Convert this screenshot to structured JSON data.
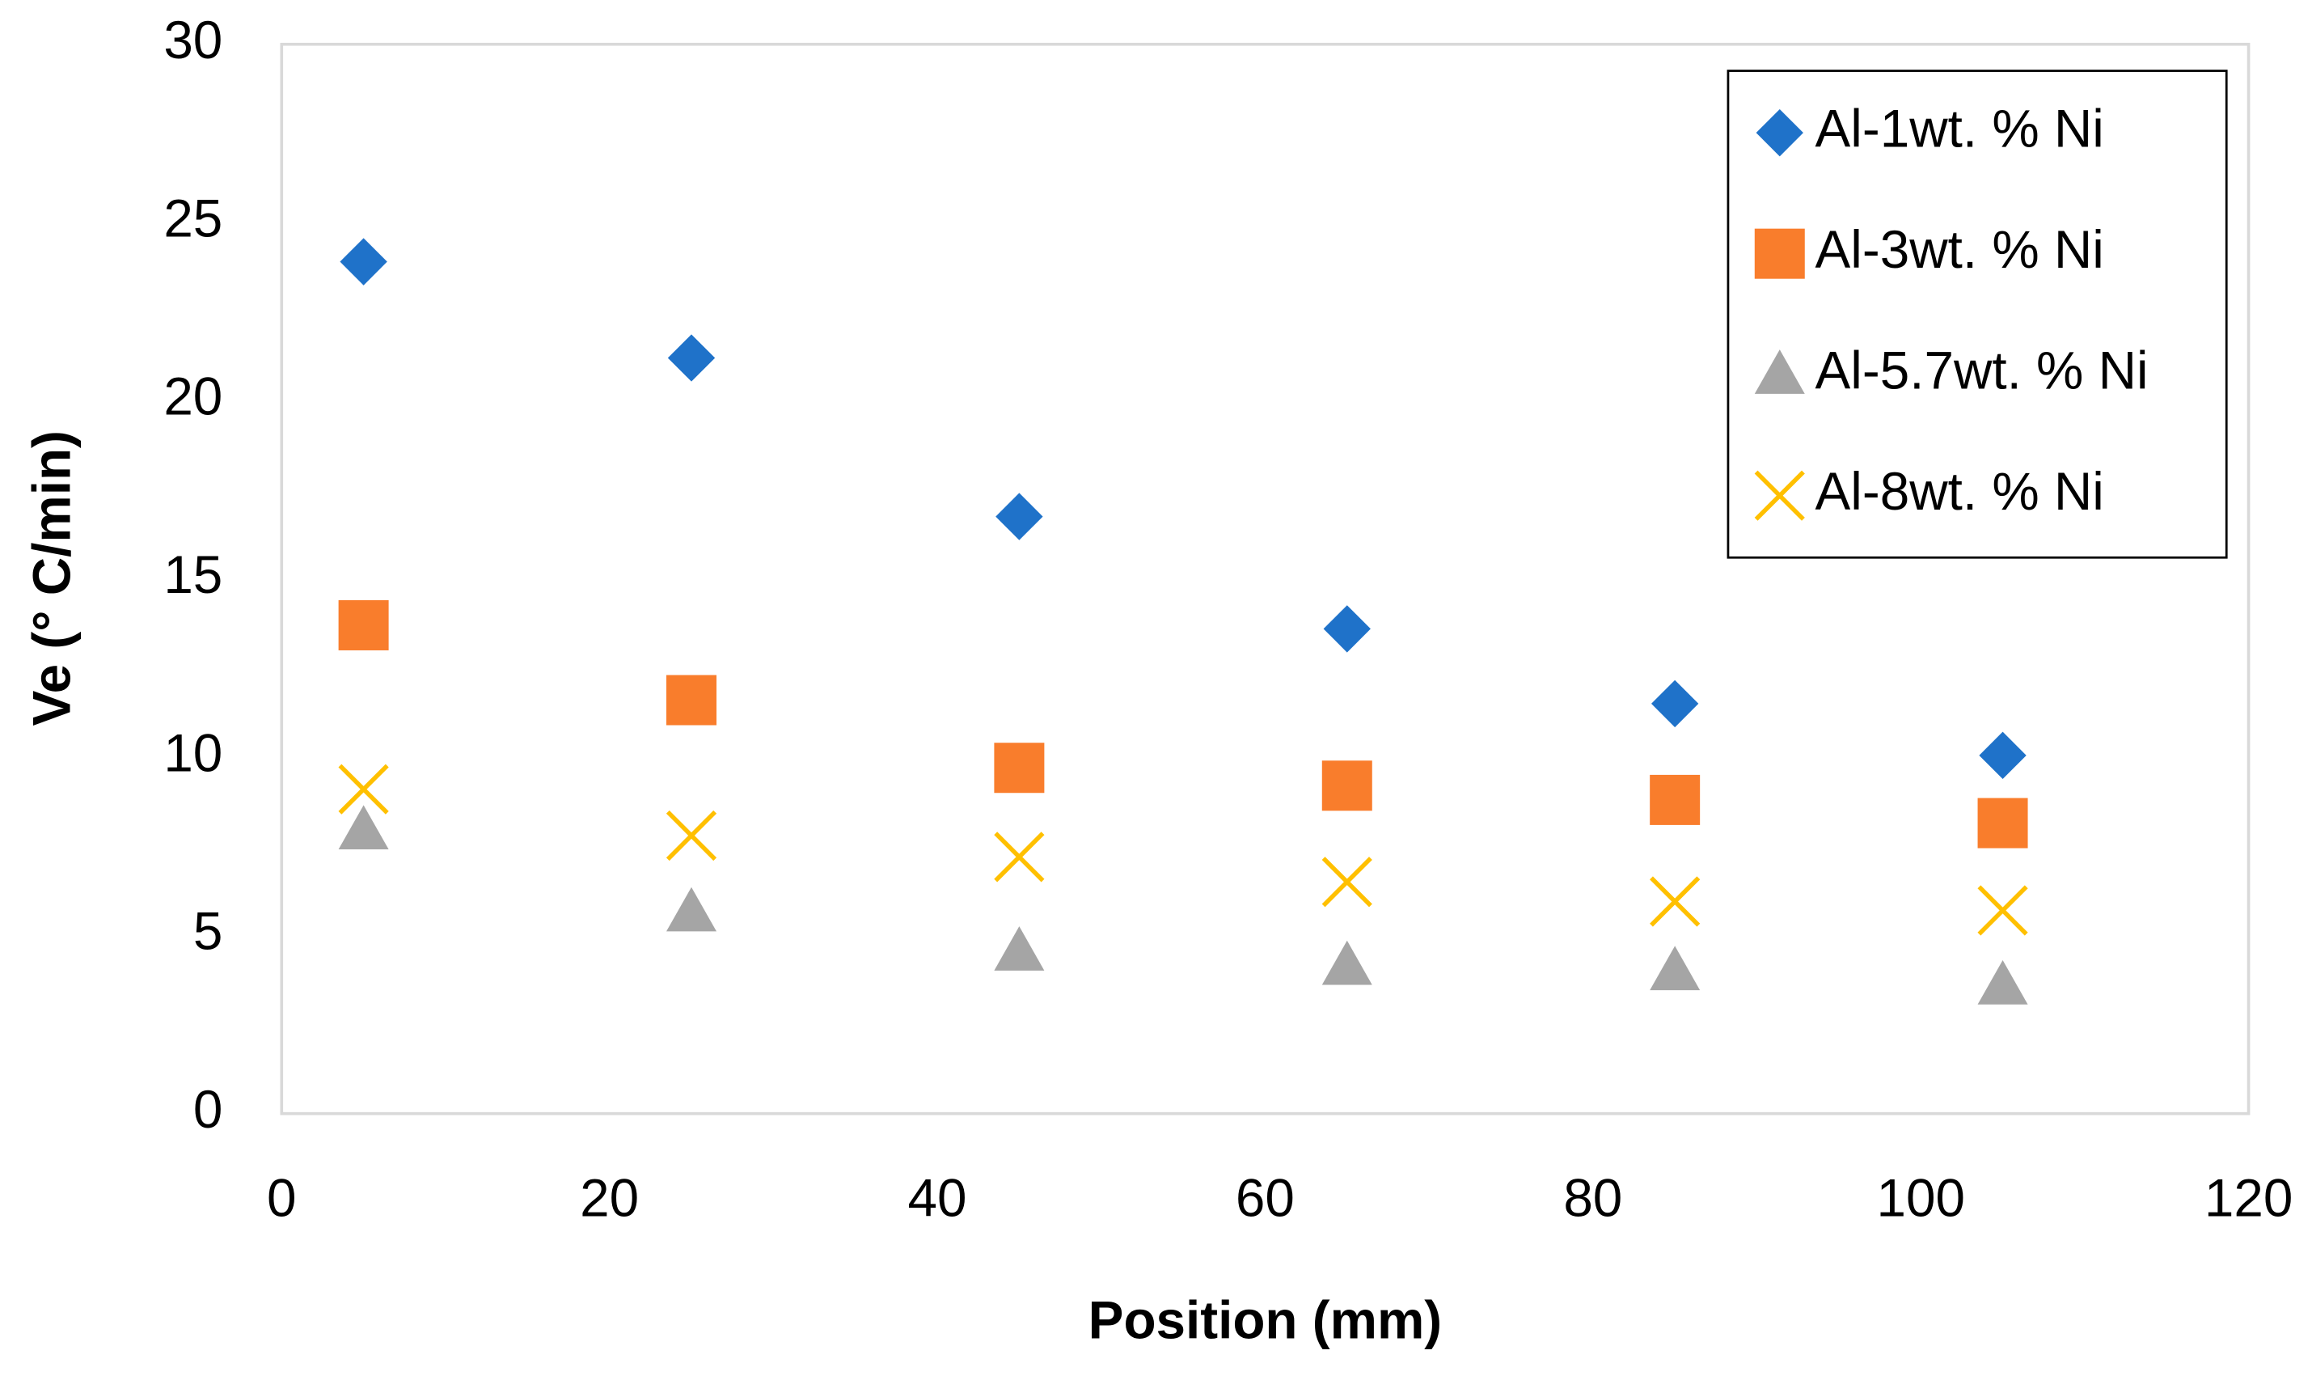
{
  "chart_data": {
    "type": "scatter",
    "x_label": "Position (mm)",
    "y_label": "Ve (° C/min)",
    "xlim": [
      0,
      120
    ],
    "xticks": [
      0,
      20,
      40,
      60,
      80,
      100,
      120
    ],
    "ylim": [
      0,
      30
    ],
    "yticks": [
      0,
      5,
      10,
      15,
      20,
      25,
      30
    ],
    "grid": false,
    "legend": "upper right",
    "series": [
      {
        "name": "Al-1wt. % Ni",
        "color": "#1f72c9",
        "marker": "diamond",
        "x": [
          5,
          25,
          45,
          65,
          85,
          105
        ],
        "values": [
          23.9,
          21.2,
          16.75,
          13.6,
          11.5,
          10.05
        ]
      },
      {
        "name": "Al-3wt. % Ni",
        "color": "#f97d2c",
        "marker": "square",
        "x": [
          5,
          25,
          45,
          65,
          85,
          105
        ],
        "values": [
          13.7,
          11.6,
          9.7,
          9.2,
          8.8,
          8.15
        ]
      },
      {
        "name": "Al-5.7wt. % Ni",
        "color": "#a5a5a5",
        "marker": "triangle",
        "x": [
          5,
          25,
          45,
          65,
          85,
          105
        ],
        "values": [
          7.95,
          5.65,
          4.55,
          4.15,
          4.0,
          3.6
        ]
      },
      {
        "name": "Al-8wt. % Ni",
        "color": "#ffc000",
        "marker": "x",
        "x": [
          5,
          25,
          45,
          65,
          85,
          105
        ],
        "values": [
          9.1,
          7.8,
          7.2,
          6.5,
          5.95,
          5.7
        ]
      }
    ]
  }
}
